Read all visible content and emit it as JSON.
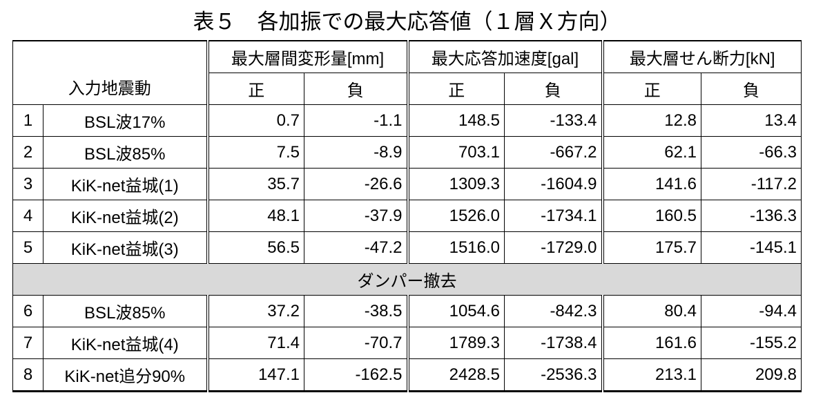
{
  "title": "表５　各加振での最大応答値（１層Ｘ方向）",
  "table": {
    "corner": "入力地震動",
    "groups": [
      "最大層間変形量[mm]",
      "最大応答加速度[gal]",
      "最大層せん断力[kN]"
    ],
    "subheaders": [
      "正",
      "負",
      "正",
      "負",
      "正",
      "負"
    ],
    "rows": [
      [
        "1",
        "BSL波17%",
        "0.7",
        "-1.1",
        "148.5",
        "-133.4",
        "12.8",
        "13.4"
      ],
      [
        "2",
        "BSL波85%",
        "7.5",
        "-8.9",
        "703.1",
        "-667.2",
        "62.1",
        "-66.3"
      ],
      [
        "3",
        "KiK-net益城(1)",
        "35.7",
        "-26.6",
        "1309.3",
        "-1604.9",
        "141.6",
        "-117.2"
      ],
      [
        "4",
        "KiK-net益城(2)",
        "48.1",
        "-37.9",
        "1526.0",
        "-1734.1",
        "160.5",
        "-136.3"
      ],
      [
        "5",
        "KiK-net益城(3)",
        "56.5",
        "-47.2",
        "1516.0",
        "-1729.0",
        "175.7",
        "-145.1"
      ]
    ],
    "section": "ダンパー撤去",
    "rows_after": [
      [
        "6",
        "BSL波85%",
        "37.2",
        "-38.5",
        "1054.6",
        "-842.3",
        "80.4",
        "-94.4"
      ],
      [
        "7",
        "KiK-net益城(4)",
        "71.4",
        "-70.7",
        "1789.3",
        "-1738.4",
        "161.6",
        "-155.2"
      ],
      [
        "8",
        "KiK-net追分90%",
        "147.1",
        "-162.5",
        "2428.5",
        "-2536.3",
        "213.1",
        "209.8"
      ]
    ]
  }
}
